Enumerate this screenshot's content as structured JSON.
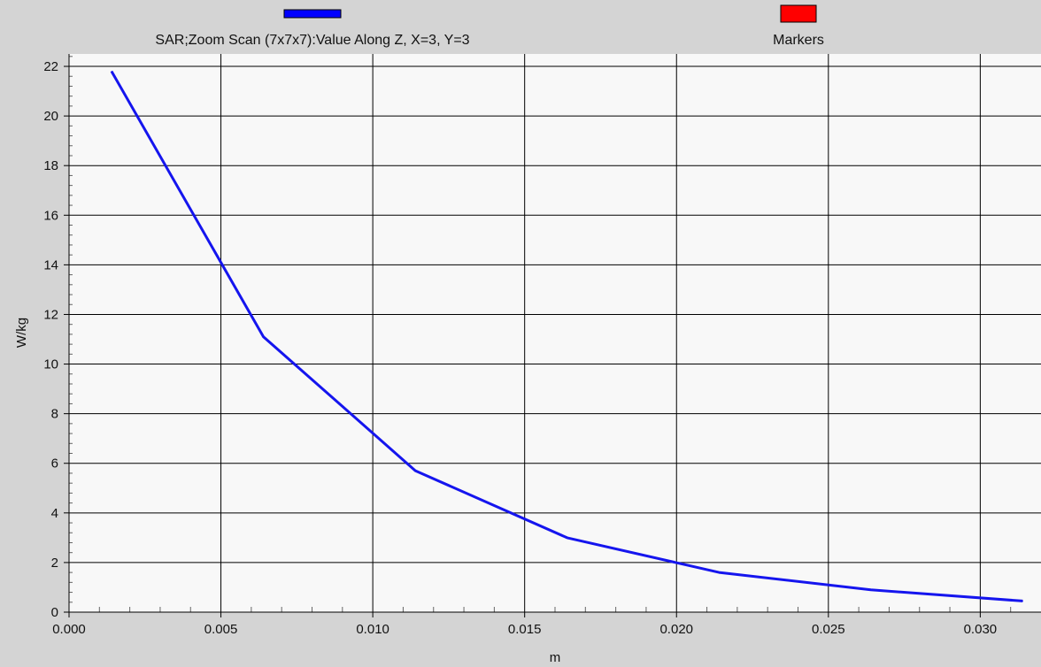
{
  "chart_data": {
    "type": "line",
    "title": "",
    "xlabel": "m",
    "ylabel": "W/kg",
    "xlim": [
      0.0,
      0.032
    ],
    "ylim": [
      0,
      22.5
    ],
    "xticks": [
      "0.000",
      "0.005",
      "0.010",
      "0.015",
      "0.020",
      "0.025",
      "0.030"
    ],
    "xtick_values": [
      0.0,
      0.005,
      0.01,
      0.015,
      0.02,
      0.025,
      0.03
    ],
    "yticks": [
      "0",
      "2",
      "4",
      "6",
      "8",
      "10",
      "12",
      "14",
      "16",
      "18",
      "20",
      "22"
    ],
    "ytick_values": [
      0,
      2,
      4,
      6,
      8,
      10,
      12,
      14,
      16,
      18,
      20,
      22
    ],
    "grid": true,
    "legend_position": "top",
    "legend": [
      {
        "label": "SAR;Zoom Scan (7x7x7):Value Along Z, X=3, Y=3",
        "color": "#0000ff"
      },
      {
        "label": "Markers",
        "color": "#ff0000"
      }
    ],
    "series": [
      {
        "name": "SAR;Zoom Scan (7x7x7):Value Along Z, X=3, Y=3",
        "color": "#1515ee",
        "x": [
          0.0014,
          0.0064,
          0.0114,
          0.0164,
          0.0214,
          0.0264,
          0.0314
        ],
        "y": [
          21.8,
          11.1,
          5.7,
          3.0,
          1.6,
          0.9,
          0.45
        ]
      }
    ]
  }
}
